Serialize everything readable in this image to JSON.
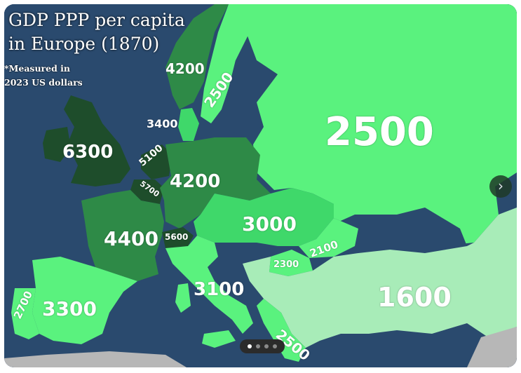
{
  "map": {
    "title_line1": "GDP PPP per capita",
    "title_line2": "in Europe (1870)",
    "note_line1": "*Measured in",
    "note_line2": "2023 US dollars",
    "colors": {
      "sea": "#2a4a6e",
      "lightest": "#a8ecb8",
      "light": "#5af27e",
      "medium": "#3fd86a",
      "dark": "#2e8a47",
      "darkest": "#1e4d2b",
      "gray": "#b7b7b7"
    },
    "labels": {
      "russia": "2500",
      "uk": "6300",
      "france": "4400",
      "germany": "4200",
      "norway": "4200",
      "sweden": "2500",
      "denmark": "3400",
      "netherlands": "5100",
      "belgium": "5700",
      "switzerland": "5600",
      "austria_hungary": "3000",
      "romania": "2100",
      "bulgaria": "2300",
      "ottoman": "1600",
      "italy": "3100",
      "greece": "2500",
      "spain": "3300",
      "portugal": "2700"
    }
  },
  "carousel": {
    "next_icon": "chevron-right-icon",
    "total_dots": 4,
    "active_dot": 1
  }
}
